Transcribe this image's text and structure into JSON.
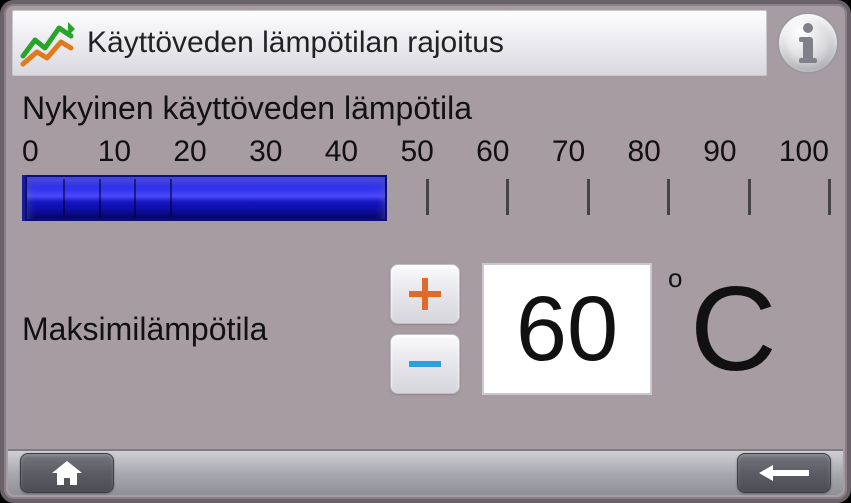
{
  "header": {
    "title": "Käyttöveden lämpötilan rajoitus",
    "icon_name": "trend-chart-icon",
    "info_icon_name": "info-icon"
  },
  "gauge": {
    "section_label": "Nykyinen käyttöveden lämpötila",
    "min": 0,
    "max": 100,
    "ticks": [
      0,
      10,
      20,
      30,
      40,
      50,
      60,
      70,
      80,
      90,
      100
    ],
    "current_value": 45,
    "fill_color_top": "#1c1ce8",
    "fill_color_bottom": "#0a0a9a",
    "border_color": "#0c0c7a",
    "tick_color": "#444444",
    "segment_line_color": "rgba(0,0,45,.55)"
  },
  "max_temp": {
    "label": "Maksimilämpötila",
    "value": 60,
    "unit_symbol": "C",
    "degree_symbol": "o",
    "plus_color": "#e06a2a",
    "minus_color": "#2aa0e0"
  },
  "footer": {
    "home_icon_name": "home-icon",
    "back_icon_name": "back-arrow-icon"
  },
  "colors": {
    "panel_bg": "#a89ca3",
    "frame": "#6b6269",
    "titlebar_bg_top": "#fdfdfd",
    "titlebar_bg_bottom": "#d8d8de",
    "text": "#111111",
    "value_box_bg": "#ffffff"
  }
}
